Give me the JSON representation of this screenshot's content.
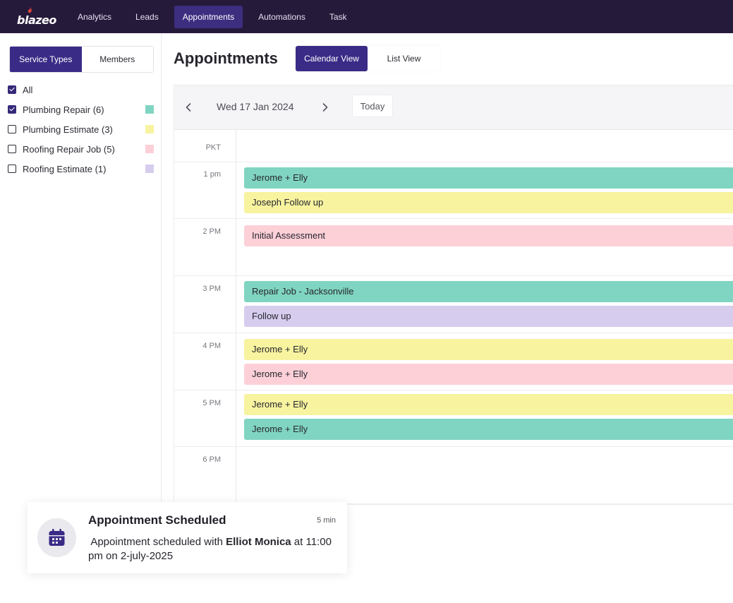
{
  "brand": {
    "name": "blazeo"
  },
  "nav": {
    "items": [
      {
        "label": "Analytics"
      },
      {
        "label": "Leads"
      },
      {
        "label": "Appointments"
      },
      {
        "label": "Automations"
      },
      {
        "label": "Task"
      }
    ],
    "active": "Appointments"
  },
  "sidebar": {
    "segments": [
      {
        "label": "Service Types",
        "active": true
      },
      {
        "label": "Members",
        "active": false
      }
    ],
    "filters": [
      {
        "label": "All",
        "checked": true,
        "color": ""
      },
      {
        "label": "Plumbing Repair  (6)",
        "checked": true,
        "color": "#80d5c2"
      },
      {
        "label": "Plumbing Estimate  (3)",
        "checked": false,
        "color": "#f7f39f"
      },
      {
        "label": "Roofing Repair Job  (5)",
        "checked": false,
        "color": "#fdd0d8"
      },
      {
        "label": "Roofing Estimate  (1)",
        "checked": false,
        "color": "#d6cdee"
      }
    ]
  },
  "main": {
    "title": "Appointments",
    "views": [
      {
        "label": "Calendar View",
        "active": true
      },
      {
        "label": "List View",
        "active": false
      }
    ]
  },
  "calendar": {
    "date_label": "Wed 17 Jan 2024",
    "today_label": "Today",
    "timezone": "PKT",
    "hours": [
      "1 pm",
      "2 PM",
      "3 PM",
      "4 PM",
      "5 PM",
      "6 PM"
    ],
    "events": [
      {
        "title": "Jerome + Elly",
        "type": "green"
      },
      {
        "title": "Joseph Follow up",
        "type": "yellow"
      },
      {
        "title": "Initial Assessment",
        "type": "pink"
      },
      {
        "title": "Repair Job - Jacksonville",
        "type": "green"
      },
      {
        "title": "Follow up",
        "type": "purple"
      },
      {
        "title": "Jerome + Elly",
        "type": "yellow"
      },
      {
        "title": "Jerome + Elly",
        "type": "pink"
      },
      {
        "title": "Jerome + Elly",
        "type": "yellow"
      },
      {
        "title": "Jerome + Elly",
        "type": "green"
      }
    ]
  },
  "toast": {
    "title": "Appointment Scheduled",
    "time": "5 min",
    "body_prefix": " Appointment scheduled with ",
    "body_name": "Elliot Monica",
    "body_suffix": " at 11:00 pm on 2-july-2025",
    "icon": "calendar-icon"
  },
  "colors": {
    "nav_bg": "#261a3a",
    "accent": "#3a2b86",
    "event_green": "#80d5c2",
    "event_yellow": "#f7f39f",
    "event_pink": "#fdd0d8",
    "event_purple": "#d6cdee"
  }
}
